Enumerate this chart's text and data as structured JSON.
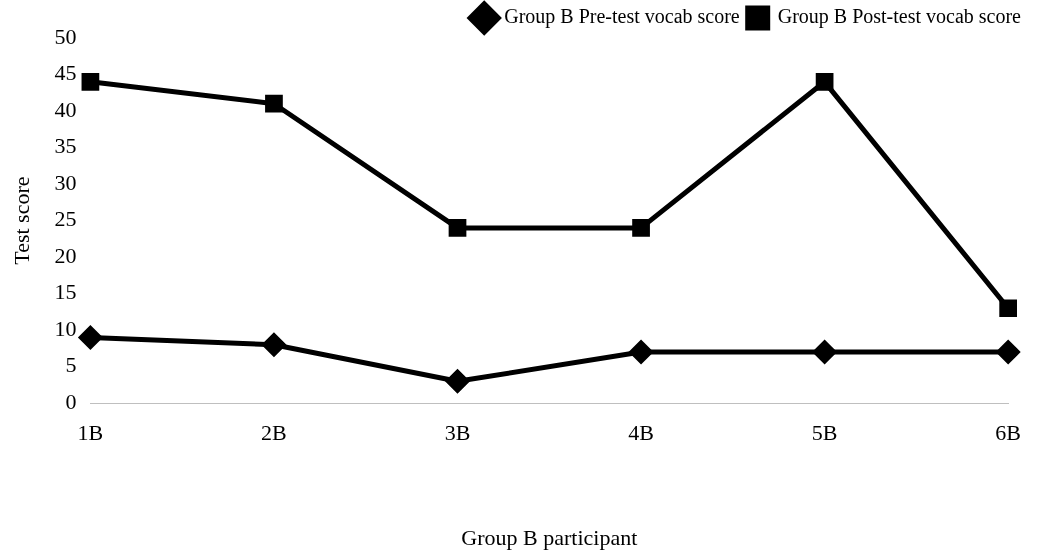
{
  "chart_data": {
    "type": "line",
    "xlabel": "Group B participant",
    "ylabel": "Test score",
    "categories": [
      "1B",
      "2B",
      "3B",
      "4B",
      "5B",
      "6B"
    ],
    "series": [
      {
        "name": "Group B Pre-test vocab score",
        "color": "#000000",
        "values": [
          9,
          8,
          3,
          7,
          7,
          7
        ],
        "marker": "diamond"
      },
      {
        "name": "Group B Post-test vocab score",
        "color": "#000000",
        "values": [
          44,
          41,
          24,
          24,
          44,
          13
        ],
        "marker": "square"
      }
    ],
    "ylim": [
      0,
      50
    ],
    "yticks": [
      0,
      5,
      10,
      15,
      20,
      25,
      30,
      35,
      40,
      45,
      50
    ],
    "grid": false,
    "legend": "top right",
    "line_style": "solid"
  }
}
